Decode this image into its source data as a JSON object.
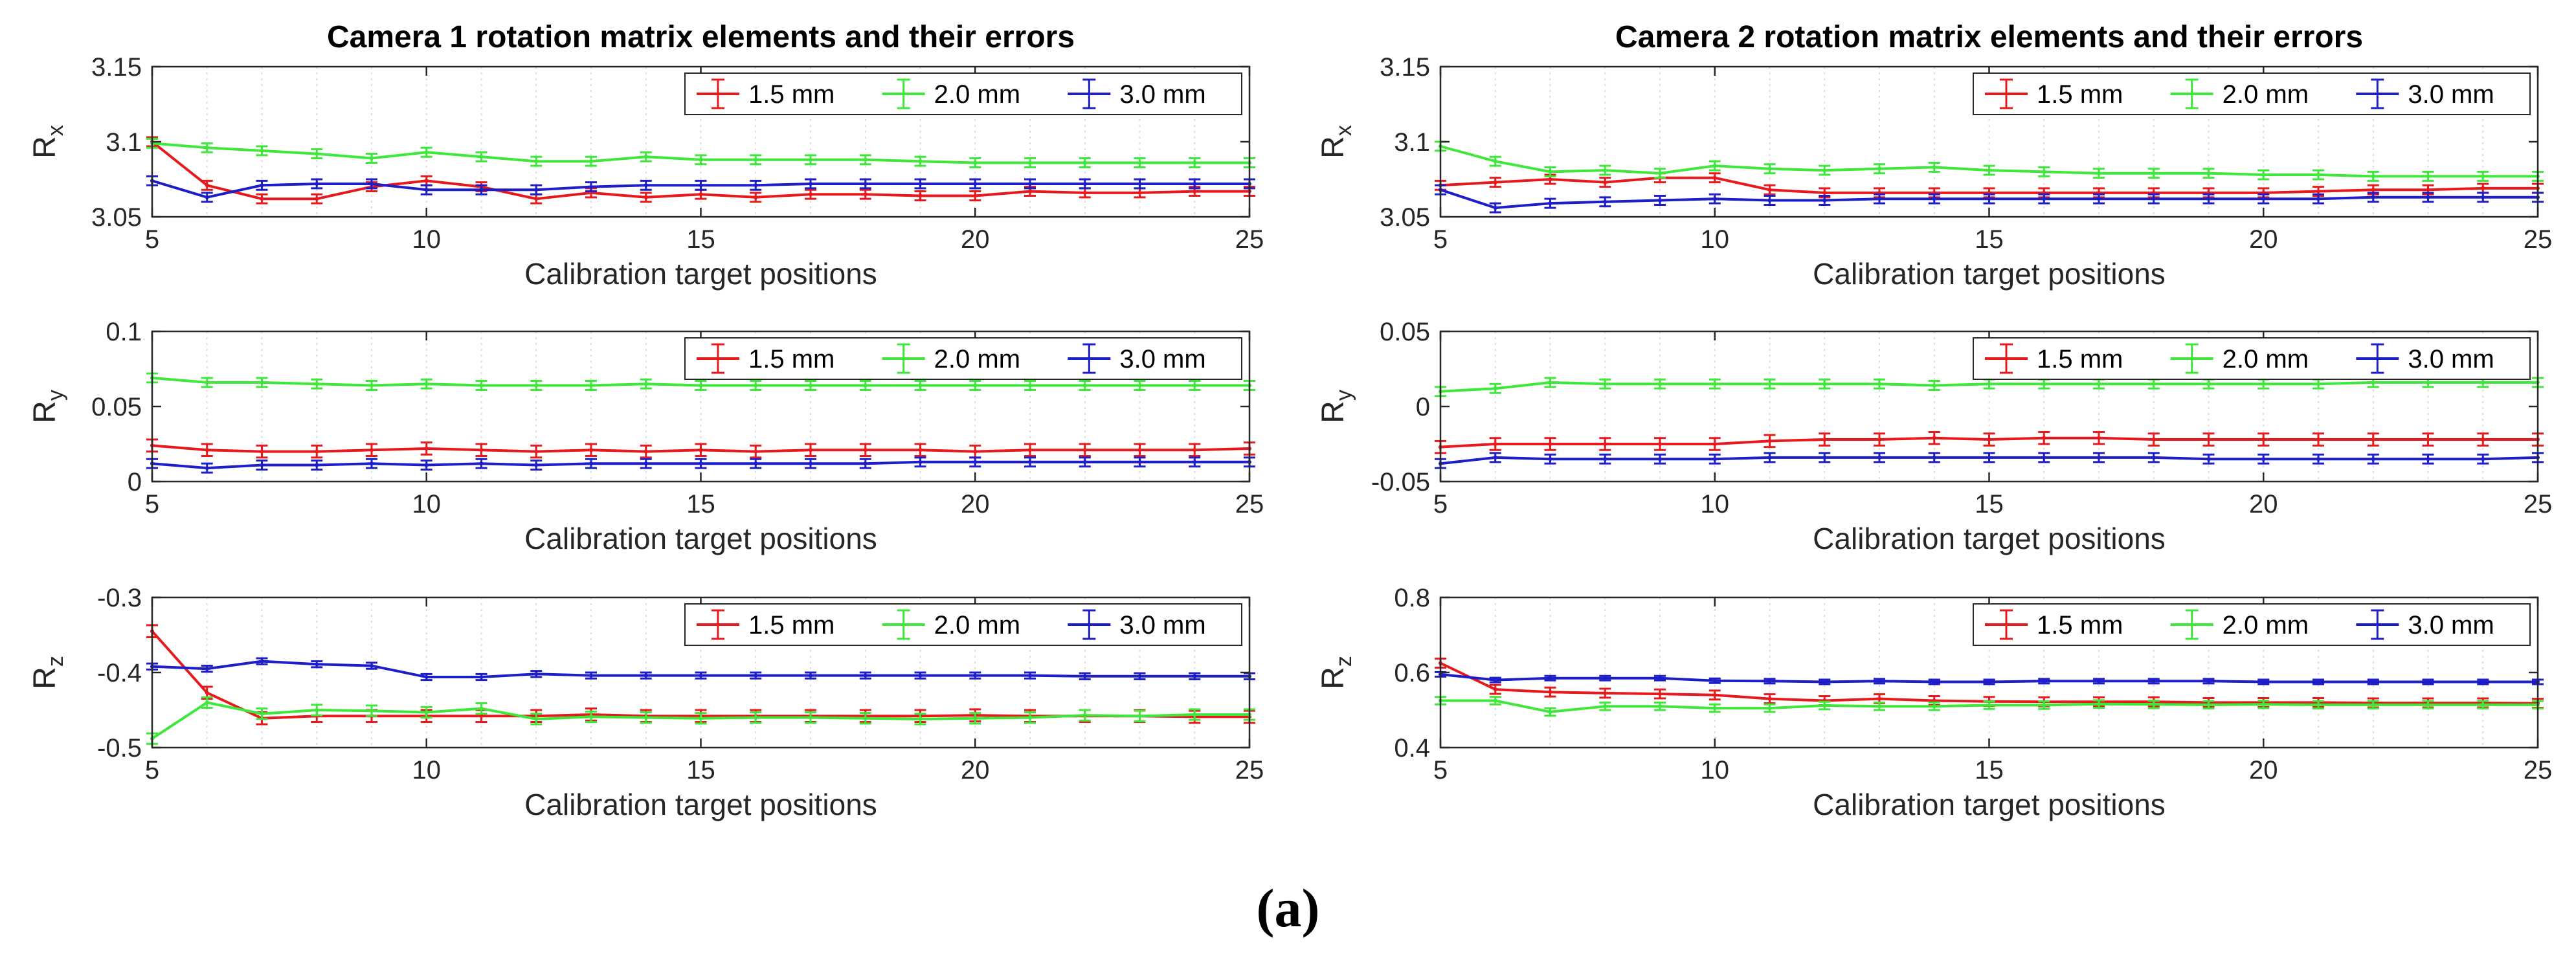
{
  "caption": "(a)",
  "colors": {
    "red": "#e8191c",
    "green": "#3ee83a",
    "blue": "#1e1ec8",
    "grid": "#dcdcdc"
  },
  "legend_labels": [
    "1.5 mm",
    "2.0 mm",
    "3.0 mm"
  ],
  "chart_data": [
    {
      "type": "line",
      "title": "Camera 1 rotation matrix elements and their errors",
      "ylabel_main": "R",
      "ylabel_sub": "x",
      "xlabel": "Calibration target positions",
      "xlim": [
        5,
        25
      ],
      "ylim": [
        3.05,
        3.15
      ],
      "yticks": [
        "3.05",
        "3.1",
        "3.15"
      ],
      "xticks": [
        "5",
        "10",
        "15",
        "20",
        "25"
      ],
      "x": [
        5,
        6,
        7,
        8,
        9,
        10,
        11,
        12,
        13,
        14,
        15,
        16,
        17,
        18,
        19,
        20,
        21,
        22,
        23,
        24,
        25
      ],
      "series": [
        {
          "name": "1.5 mm",
          "color": "red",
          "err": 0.003,
          "values": [
            3.1,
            3.071,
            3.062,
            3.062,
            3.07,
            3.074,
            3.07,
            3.062,
            3.066,
            3.063,
            3.065,
            3.063,
            3.065,
            3.065,
            3.064,
            3.064,
            3.067,
            3.066,
            3.066,
            3.067,
            3.067
          ]
        },
        {
          "name": "2.0 mm",
          "color": "green",
          "err": 0.003,
          "values": [
            3.099,
            3.096,
            3.094,
            3.092,
            3.089,
            3.093,
            3.09,
            3.087,
            3.087,
            3.09,
            3.088,
            3.088,
            3.088,
            3.088,
            3.087,
            3.086,
            3.086,
            3.086,
            3.086,
            3.086,
            3.086
          ]
        },
        {
          "name": "3.0 mm",
          "color": "blue",
          "err": 0.003,
          "values": [
            3.074,
            3.063,
            3.071,
            3.072,
            3.072,
            3.068,
            3.068,
            3.068,
            3.07,
            3.071,
            3.071,
            3.071,
            3.072,
            3.072,
            3.072,
            3.072,
            3.072,
            3.072,
            3.072,
            3.072,
            3.072
          ]
        }
      ]
    },
    {
      "type": "line",
      "title": "",
      "ylabel_main": "R",
      "ylabel_sub": "y",
      "xlabel": "Calibration target positions",
      "xlim": [
        5,
        25
      ],
      "ylim": [
        0,
        0.1
      ],
      "yticks": [
        "0",
        "0.05",
        "0.1"
      ],
      "xticks": [
        "5",
        "10",
        "15",
        "20",
        "25"
      ],
      "x": [
        5,
        6,
        7,
        8,
        9,
        10,
        11,
        12,
        13,
        14,
        15,
        16,
        17,
        18,
        19,
        20,
        21,
        22,
        23,
        24,
        25
      ],
      "series": [
        {
          "name": "1.5 mm",
          "color": "red",
          "err": 0.004,
          "values": [
            0.024,
            0.021,
            0.02,
            0.02,
            0.021,
            0.022,
            0.021,
            0.02,
            0.021,
            0.02,
            0.021,
            0.02,
            0.021,
            0.021,
            0.021,
            0.02,
            0.021,
            0.021,
            0.021,
            0.021,
            0.022
          ]
        },
        {
          "name": "2.0 mm",
          "color": "green",
          "err": 0.003,
          "values": [
            0.069,
            0.066,
            0.066,
            0.065,
            0.064,
            0.065,
            0.064,
            0.064,
            0.064,
            0.065,
            0.064,
            0.064,
            0.064,
            0.064,
            0.064,
            0.064,
            0.064,
            0.064,
            0.064,
            0.064,
            0.064
          ]
        },
        {
          "name": "3.0 mm",
          "color": "blue",
          "err": 0.003,
          "values": [
            0.012,
            0.009,
            0.011,
            0.011,
            0.012,
            0.011,
            0.012,
            0.011,
            0.012,
            0.012,
            0.012,
            0.012,
            0.012,
            0.012,
            0.013,
            0.013,
            0.013,
            0.013,
            0.013,
            0.013,
            0.013
          ]
        }
      ]
    },
    {
      "type": "line",
      "title": "",
      "ylabel_main": "R",
      "ylabel_sub": "z",
      "xlabel": "Calibration target positions",
      "xlim": [
        5,
        25
      ],
      "ylim": [
        -0.5,
        -0.3
      ],
      "yticks": [
        "-0.5",
        "-0.4",
        "-0.3"
      ],
      "xticks": [
        "5",
        "10",
        "15",
        "20",
        "25"
      ],
      "x": [
        5,
        6,
        7,
        8,
        9,
        10,
        11,
        12,
        13,
        14,
        15,
        16,
        17,
        18,
        19,
        20,
        21,
        22,
        23,
        24,
        25
      ],
      "series": [
        {
          "name": "1.5 mm",
          "color": "red",
          "err": 0.008,
          "values": [
            -0.345,
            -0.427,
            -0.461,
            -0.458,
            -0.458,
            -0.458,
            -0.458,
            -0.458,
            -0.456,
            -0.458,
            -0.458,
            -0.458,
            -0.458,
            -0.458,
            -0.458,
            -0.457,
            -0.458,
            -0.458,
            -0.458,
            -0.459,
            -0.459
          ]
        },
        {
          "name": "2.0 mm",
          "color": "green",
          "err": 0.007,
          "values": [
            -0.488,
            -0.44,
            -0.455,
            -0.45,
            -0.451,
            -0.453,
            -0.448,
            -0.462,
            -0.459,
            -0.46,
            -0.461,
            -0.46,
            -0.46,
            -0.461,
            -0.462,
            -0.461,
            -0.46,
            -0.457,
            -0.458,
            -0.456,
            -0.456
          ]
        },
        {
          "name": "3.0 mm",
          "color": "blue",
          "err": 0.004,
          "values": [
            -0.392,
            -0.395,
            -0.385,
            -0.389,
            -0.391,
            -0.406,
            -0.406,
            -0.402,
            -0.404,
            -0.404,
            -0.404,
            -0.404,
            -0.404,
            -0.404,
            -0.404,
            -0.404,
            -0.404,
            -0.405,
            -0.405,
            -0.405,
            -0.405
          ]
        }
      ]
    },
    {
      "type": "line",
      "title": "Camera 2 rotation matrix elements and their errors",
      "ylabel_main": "R",
      "ylabel_sub": "x",
      "xlabel": "Calibration target positions",
      "xlim": [
        5,
        25
      ],
      "ylim": [
        3.05,
        3.15
      ],
      "yticks": [
        "3.05",
        "3.1",
        "3.15"
      ],
      "xticks": [
        "5",
        "10",
        "15",
        "20",
        "25"
      ],
      "x": [
        5,
        6,
        7,
        8,
        9,
        10,
        11,
        12,
        13,
        14,
        15,
        16,
        17,
        18,
        19,
        20,
        21,
        22,
        23,
        24,
        25
      ],
      "series": [
        {
          "name": "1.5 mm",
          "color": "red",
          "err": 0.003,
          "values": [
            3.071,
            3.073,
            3.075,
            3.073,
            3.076,
            3.076,
            3.068,
            3.066,
            3.066,
            3.066,
            3.066,
            3.066,
            3.066,
            3.066,
            3.066,
            3.066,
            3.067,
            3.068,
            3.068,
            3.069,
            3.069
          ]
        },
        {
          "name": "2.0 mm",
          "color": "green",
          "err": 0.003,
          "values": [
            3.097,
            3.087,
            3.08,
            3.081,
            3.079,
            3.084,
            3.082,
            3.081,
            3.082,
            3.083,
            3.081,
            3.08,
            3.079,
            3.079,
            3.079,
            3.078,
            3.078,
            3.077,
            3.077,
            3.077,
            3.077
          ]
        },
        {
          "name": "3.0 mm",
          "color": "blue",
          "err": 0.003,
          "values": [
            3.068,
            3.056,
            3.059,
            3.06,
            3.061,
            3.062,
            3.061,
            3.061,
            3.062,
            3.062,
            3.062,
            3.062,
            3.062,
            3.062,
            3.062,
            3.062,
            3.062,
            3.063,
            3.063,
            3.063,
            3.063
          ]
        }
      ]
    },
    {
      "type": "line",
      "title": "",
      "ylabel_main": "R",
      "ylabel_sub": "y",
      "xlabel": "Calibration target positions",
      "xlim": [
        5,
        25
      ],
      "ylim": [
        -0.05,
        0.05
      ],
      "yticks": [
        "-0.05",
        "0",
        "0.05"
      ],
      "xticks": [
        "5",
        "10",
        "15",
        "20",
        "25"
      ],
      "x": [
        5,
        6,
        7,
        8,
        9,
        10,
        11,
        12,
        13,
        14,
        15,
        16,
        17,
        18,
        19,
        20,
        21,
        22,
        23,
        24,
        25
      ],
      "series": [
        {
          "name": "1.5 mm",
          "color": "red",
          "err": 0.004,
          "values": [
            -0.027,
            -0.025,
            -0.025,
            -0.025,
            -0.025,
            -0.025,
            -0.023,
            -0.022,
            -0.022,
            -0.021,
            -0.022,
            -0.021,
            -0.021,
            -0.022,
            -0.022,
            -0.022,
            -0.022,
            -0.022,
            -0.022,
            -0.022,
            -0.022
          ]
        },
        {
          "name": "2.0 mm",
          "color": "green",
          "err": 0.003,
          "values": [
            0.01,
            0.012,
            0.016,
            0.015,
            0.015,
            0.015,
            0.015,
            0.015,
            0.015,
            0.014,
            0.015,
            0.015,
            0.015,
            0.015,
            0.015,
            0.015,
            0.015,
            0.016,
            0.016,
            0.016,
            0.016
          ]
        },
        {
          "name": "3.0 mm",
          "color": "blue",
          "err": 0.003,
          "values": [
            -0.038,
            -0.034,
            -0.035,
            -0.035,
            -0.035,
            -0.035,
            -0.034,
            -0.034,
            -0.034,
            -0.034,
            -0.034,
            -0.034,
            -0.034,
            -0.034,
            -0.035,
            -0.035,
            -0.035,
            -0.035,
            -0.035,
            -0.035,
            -0.034
          ]
        }
      ]
    },
    {
      "type": "line",
      "title": "",
      "ylabel_main": "R",
      "ylabel_sub": "z",
      "xlabel": "Calibration target positions",
      "xlim": [
        5,
        25
      ],
      "ylim": [
        0.4,
        0.8
      ],
      "yticks": [
        "0.4",
        "0.6",
        "0.8"
      ],
      "xticks": [
        "5",
        "10",
        "15",
        "20",
        "25"
      ],
      "x": [
        5,
        6,
        7,
        8,
        9,
        10,
        11,
        12,
        13,
        14,
        15,
        16,
        17,
        18,
        19,
        20,
        21,
        22,
        23,
        24,
        25
      ],
      "series": [
        {
          "name": "1.5 mm",
          "color": "red",
          "err": 0.012,
          "values": [
            0.625,
            0.555,
            0.548,
            0.545,
            0.543,
            0.54,
            0.53,
            0.525,
            0.53,
            0.525,
            0.523,
            0.522,
            0.522,
            0.522,
            0.52,
            0.52,
            0.52,
            0.519,
            0.519,
            0.519,
            0.518
          ]
        },
        {
          "name": "2.0 mm",
          "color": "green",
          "err": 0.01,
          "values": [
            0.525,
            0.525,
            0.495,
            0.51,
            0.51,
            0.505,
            0.505,
            0.512,
            0.51,
            0.51,
            0.513,
            0.513,
            0.516,
            0.515,
            0.514,
            0.515,
            0.514,
            0.514,
            0.514,
            0.514,
            0.514
          ]
        },
        {
          "name": "3.0 mm",
          "color": "blue",
          "err": 0.006,
          "values": [
            0.595,
            0.58,
            0.585,
            0.585,
            0.585,
            0.578,
            0.577,
            0.575,
            0.577,
            0.575,
            0.575,
            0.577,
            0.577,
            0.577,
            0.577,
            0.575,
            0.575,
            0.575,
            0.575,
            0.575,
            0.575
          ]
        }
      ]
    }
  ]
}
